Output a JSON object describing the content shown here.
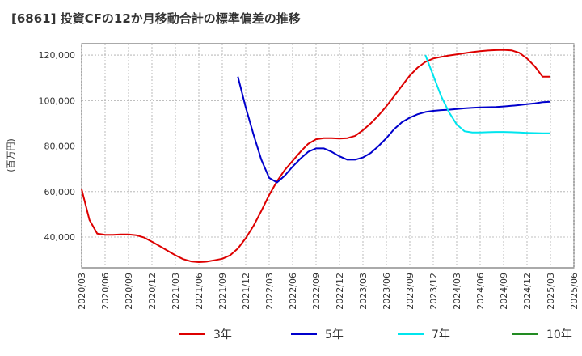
{
  "chart_data": {
    "type": "line",
    "title": "[6861]  投資CFの12か月移動合計の標準偏差の推移",
    "ylabel": "(百万円)",
    "xlabel": "",
    "ylim": [
      26500,
      125000
    ],
    "yticks": [
      40000,
      60000,
      80000,
      100000,
      120000
    ],
    "ytick_labels": [
      "40,000",
      "60,000",
      "80,000",
      "100,000",
      "120,000"
    ],
    "x_labels": [
      "2020/03",
      "2020/06",
      "2020/09",
      "2020/12",
      "2021/03",
      "2021/06",
      "2021/09",
      "2021/12",
      "2022/03",
      "2022/06",
      "2022/09",
      "2022/12",
      "2023/03",
      "2023/06",
      "2023/09",
      "2023/12",
      "2024/03",
      "2024/06",
      "2024/09",
      "2024/12",
      "2025/03",
      "2025/06"
    ],
    "grid": true,
    "legend_position": "bottom",
    "series": [
      {
        "name": "3年",
        "color": "#dd0000",
        "x": [
          "2020/03",
          "2020/04",
          "2020/05",
          "2020/06",
          "2020/07",
          "2020/08",
          "2020/09",
          "2020/10",
          "2020/11",
          "2020/12",
          "2021/01",
          "2021/02",
          "2021/03",
          "2021/04",
          "2021/05",
          "2021/06",
          "2021/07",
          "2021/08",
          "2021/09",
          "2021/10",
          "2021/11",
          "2021/12",
          "2022/01",
          "2022/02",
          "2022/03",
          "2022/04",
          "2022/05",
          "2022/06",
          "2022/07",
          "2022/08",
          "2022/09",
          "2022/10",
          "2022/11",
          "2022/12",
          "2023/01",
          "2023/02",
          "2023/03",
          "2023/04",
          "2023/05",
          "2023/06",
          "2023/07",
          "2023/08",
          "2023/09",
          "2023/10",
          "2023/11",
          "2023/12",
          "2024/01",
          "2024/02",
          "2024/03",
          "2024/04",
          "2024/05",
          "2024/06",
          "2024/07",
          "2024/08",
          "2024/09",
          "2024/10",
          "2024/11",
          "2024/12",
          "2025/01",
          "2025/02",
          "2025/03"
        ],
        "values": [
          61000,
          47500,
          41500,
          41000,
          41000,
          41200,
          41200,
          40800,
          39800,
          38000,
          36000,
          34000,
          32000,
          30300,
          29300,
          29000,
          29200,
          29800,
          30500,
          32000,
          35000,
          39500,
          45000,
          51500,
          58500,
          64500,
          69500,
          73500,
          77500,
          81000,
          83000,
          83500,
          83500,
          83300,
          83500,
          84500,
          87000,
          90000,
          93500,
          97500,
          102000,
          106500,
          111000,
          114500,
          117000,
          118500,
          119200,
          119800,
          120300,
          120800,
          121300,
          121700,
          122000,
          122200,
          122300,
          122100,
          121000,
          118500,
          115000,
          110500,
          110500
        ]
      },
      {
        "name": "5年",
        "color": "#0000cc",
        "x": [
          "2021/11",
          "2021/12",
          "2022/01",
          "2022/02",
          "2022/03",
          "2022/04",
          "2022/05",
          "2022/06",
          "2022/07",
          "2022/08",
          "2022/09",
          "2022/10",
          "2022/11",
          "2022/12",
          "2023/01",
          "2023/02",
          "2023/03",
          "2023/04",
          "2023/05",
          "2023/06",
          "2023/07",
          "2023/08",
          "2023/09",
          "2023/10",
          "2023/11",
          "2023/12",
          "2024/01",
          "2024/02",
          "2024/03",
          "2024/04",
          "2024/05",
          "2024/06",
          "2024/07",
          "2024/08",
          "2024/09",
          "2024/10",
          "2024/11",
          "2024/12",
          "2025/01",
          "2025/02",
          "2025/03"
        ],
        "values": [
          110500,
          97000,
          85000,
          74000,
          66000,
          64000,
          67000,
          71000,
          74500,
          77500,
          79000,
          79000,
          77500,
          75500,
          74000,
          74000,
          75000,
          77000,
          80000,
          83500,
          87500,
          90500,
          92500,
          94000,
          95000,
          95500,
          95800,
          96000,
          96300,
          96600,
          96800,
          97000,
          97100,
          97200,
          97400,
          97700,
          98000,
          98400,
          98800,
          99300,
          99500
        ]
      },
      {
        "name": "7年",
        "color": "#00e5ee",
        "x": [
          "2023/11",
          "2023/12",
          "2024/01",
          "2024/02",
          "2024/03",
          "2024/04",
          "2024/05",
          "2024/06",
          "2024/07",
          "2024/08",
          "2024/09",
          "2024/10",
          "2024/11",
          "2024/12",
          "2025/01",
          "2025/02",
          "2025/03"
        ],
        "values": [
          120000,
          111000,
          102000,
          95000,
          89500,
          86500,
          86000,
          86000,
          86100,
          86200,
          86200,
          86100,
          86000,
          85800,
          85700,
          85600,
          85600
        ]
      },
      {
        "name": "10年",
        "color": "#228b22",
        "x": [],
        "values": []
      }
    ]
  }
}
